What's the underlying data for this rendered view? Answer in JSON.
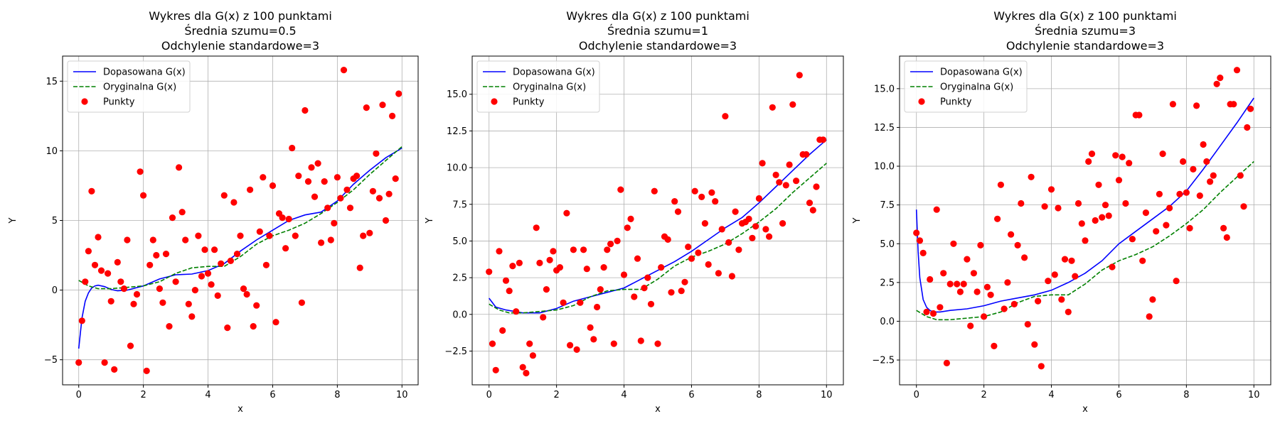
{
  "colors": {
    "fitted": "#0000ff",
    "original": "#008000",
    "points": "#ff0000",
    "grid": "#b0b0b0",
    "axes": "#000000"
  },
  "chart_data": [
    {
      "type": "scatter",
      "title": [
        "Wykres dla G(x) z 100 punktami",
        "Średnia szumu=0.5",
        "Odchylenie standardowe=3"
      ],
      "xlabel": "x",
      "ylabel": "Y",
      "xlim": [
        -0.5,
        10.5
      ],
      "ylim": [
        -6.8,
        16.8
      ],
      "xticks": [
        0,
        2,
        4,
        6,
        8,
        10
      ],
      "xtick_labels": [
        "0",
        "2",
        "4",
        "6",
        "8",
        "10"
      ],
      "yticks": [
        -5,
        0,
        5,
        10,
        15
      ],
      "ytick_labels": [
        "−5",
        "0",
        "5",
        "10",
        "15"
      ],
      "grid": true,
      "legend_position": "top-left",
      "legend": [
        "Dopasowana G(x)",
        "Oryginalna G(x)",
        "Punkty"
      ],
      "series": [
        {
          "name": "Dopasowana G(x)",
          "style": "solid",
          "color": "#0000ff",
          "x": [
            0,
            0.1,
            0.2,
            0.3,
            0.4,
            0.5,
            0.6,
            0.8,
            1.0,
            1.2,
            1.5,
            2.0,
            2.5,
            3.0,
            3.5,
            4.0,
            4.5,
            5.0,
            5.5,
            6.0,
            6.5,
            7.0,
            7.5,
            8.0,
            8.5,
            9.0,
            9.5,
            10.0
          ],
          "y": [
            -4.2,
            -2.0,
            -0.8,
            -0.2,
            0.15,
            0.3,
            0.35,
            0.25,
            0.05,
            -0.05,
            0.0,
            0.3,
            0.8,
            1.1,
            1.15,
            1.4,
            1.9,
            2.8,
            3.6,
            4.3,
            5.0,
            5.4,
            5.6,
            6.4,
            7.6,
            8.6,
            9.5,
            10.2
          ]
        },
        {
          "name": "Oryginalna G(x)",
          "style": "dashed",
          "color": "#008000",
          "x": [
            0,
            0.3,
            0.6,
            1.0,
            1.5,
            2.0,
            2.5,
            3.0,
            3.5,
            4.0,
            4.5,
            5.0,
            5.5,
            6.0,
            6.5,
            7.0,
            7.5,
            8.0,
            8.5,
            9.0,
            9.5,
            10.0
          ],
          "y": [
            0.7,
            0.3,
            0.1,
            0.1,
            0.2,
            0.3,
            0.6,
            1.2,
            1.6,
            1.7,
            1.7,
            2.4,
            3.3,
            3.9,
            4.3,
            4.8,
            5.5,
            6.3,
            7.2,
            8.3,
            9.3,
            10.3
          ]
        },
        {
          "name": "Punkty",
          "style": "markers",
          "color": "#ff0000",
          "x": [
            0.0,
            0.1,
            0.2,
            0.3,
            0.4,
            0.5,
            0.6,
            0.7,
            0.8,
            0.9,
            1.0,
            1.1,
            1.2,
            1.3,
            1.4,
            1.5,
            1.6,
            1.7,
            1.8,
            1.9,
            2.0,
            2.1,
            2.2,
            2.3,
            2.4,
            2.5,
            2.6,
            2.7,
            2.8,
            2.9,
            3.0,
            3.1,
            3.2,
            3.3,
            3.4,
            3.5,
            3.6,
            3.7,
            3.8,
            3.9,
            4.0,
            4.1,
            4.2,
            4.3,
            4.4,
            4.5,
            4.6,
            4.7,
            4.8,
            4.9,
            5.0,
            5.1,
            5.2,
            5.3,
            5.4,
            5.5,
            5.6,
            5.7,
            5.8,
            5.9,
            6.0,
            6.1,
            6.2,
            6.3,
            6.4,
            6.5,
            6.6,
            6.7,
            6.8,
            6.9,
            7.0,
            7.1,
            7.2,
            7.3,
            7.4,
            7.5,
            7.6,
            7.7,
            7.8,
            7.9,
            8.0,
            8.1,
            8.2,
            8.3,
            8.4,
            8.5,
            8.6,
            8.7,
            8.8,
            8.9,
            9.0,
            9.1,
            9.2,
            9.3,
            9.4,
            9.5,
            9.6,
            9.7,
            9.8,
            9.9
          ],
          "y": [
            -5.2,
            -2.2,
            0.6,
            2.8,
            7.1,
            1.8,
            3.8,
            1.4,
            -5.2,
            1.2,
            -0.8,
            -5.7,
            2.0,
            0.6,
            0.1,
            3.6,
            -4.0,
            -1.0,
            -0.3,
            8.5,
            6.8,
            -5.8,
            1.8,
            3.6,
            2.5,
            0.1,
            -0.9,
            2.6,
            -2.6,
            5.2,
            0.6,
            8.8,
            5.6,
            3.6,
            -1.0,
            -1.9,
            0.0,
            3.9,
            1.0,
            2.9,
            1.2,
            0.4,
            2.9,
            -0.4,
            1.9,
            6.8,
            -2.7,
            2.1,
            6.3,
            2.6,
            3.9,
            0.1,
            -0.3,
            7.2,
            -2.6,
            -1.1,
            4.2,
            8.1,
            1.8,
            3.9,
            7.5,
            -2.3,
            5.5,
            5.2,
            3.0,
            5.1,
            10.2,
            3.9,
            8.2,
            -0.9,
            12.9,
            7.8,
            8.8,
            6.7,
            9.1,
            3.4,
            7.8,
            5.9,
            3.6,
            4.8,
            8.1,
            6.6,
            15.8,
            7.2,
            5.9,
            8.0,
            8.2,
            1.6,
            3.9,
            13.1,
            4.1,
            7.1,
            9.8,
            6.6,
            13.3,
            5.0,
            6.9,
            12.5,
            8.0,
            14.1
          ]
        }
      ]
    },
    {
      "type": "scatter",
      "title": [
        "Wykres dla G(x) z 100 punktami",
        "Średnia szumu=1",
        "Odchylenie standardowe=3"
      ],
      "xlabel": "x",
      "ylabel": "Y",
      "xlim": [
        -0.5,
        10.5
      ],
      "ylim": [
        -4.8,
        17.6
      ],
      "xticks": [
        0,
        2,
        4,
        6,
        8,
        10
      ],
      "xtick_labels": [
        "0",
        "2",
        "4",
        "6",
        "8",
        "10"
      ],
      "yticks": [
        -2.5,
        0.0,
        2.5,
        5.0,
        7.5,
        10.0,
        12.5,
        15.0
      ],
      "ytick_labels": [
        "−2.5",
        "0.0",
        "2.5",
        "5.0",
        "7.5",
        "10.0",
        "12.5",
        "15.0"
      ],
      "grid": true,
      "legend_position": "top-left",
      "legend": [
        "Dopasowana G(x)",
        "Oryginalna G(x)",
        "Punkty"
      ],
      "series": [
        {
          "name": "Dopasowana G(x)",
          "style": "solid",
          "color": "#0000ff",
          "x": [
            0,
            0.2,
            0.5,
            1.0,
            1.5,
            2.0,
            2.5,
            3.0,
            3.5,
            4.0,
            4.5,
            5.0,
            5.5,
            6.0,
            6.5,
            7.0,
            7.5,
            8.0,
            8.5,
            9.0,
            9.5,
            10.0
          ],
          "y": [
            1.1,
            0.5,
            0.3,
            0.1,
            0.1,
            0.4,
            0.9,
            1.2,
            1.5,
            1.8,
            2.4,
            3.0,
            3.6,
            4.3,
            5.1,
            5.9,
            6.6,
            7.6,
            8.7,
            9.8,
            10.9,
            11.9
          ]
        },
        {
          "name": "Oryginalna G(x)",
          "style": "dashed",
          "color": "#008000",
          "x": [
            0,
            0.3,
            0.6,
            1.0,
            1.5,
            2.0,
            2.5,
            3.0,
            3.5,
            4.0,
            4.5,
            5.0,
            5.5,
            6.0,
            6.5,
            7.0,
            7.5,
            8.0,
            8.5,
            9.0,
            9.5,
            10.0
          ],
          "y": [
            0.7,
            0.3,
            0.1,
            0.1,
            0.2,
            0.3,
            0.6,
            1.2,
            1.6,
            1.7,
            1.7,
            2.4,
            3.3,
            3.9,
            4.3,
            4.8,
            5.5,
            6.3,
            7.2,
            8.3,
            9.3,
            10.3
          ]
        },
        {
          "name": "Punkty",
          "style": "markers",
          "color": "#ff0000",
          "x": [
            0.0,
            0.1,
            0.2,
            0.3,
            0.4,
            0.5,
            0.6,
            0.7,
            0.8,
            0.9,
            1.0,
            1.1,
            1.2,
            1.3,
            1.4,
            1.5,
            1.6,
            1.7,
            1.8,
            1.9,
            2.0,
            2.1,
            2.2,
            2.3,
            2.4,
            2.5,
            2.6,
            2.7,
            2.8,
            2.9,
            3.0,
            3.1,
            3.2,
            3.3,
            3.4,
            3.5,
            3.6,
            3.7,
            3.8,
            3.9,
            4.0,
            4.1,
            4.2,
            4.3,
            4.4,
            4.5,
            4.6,
            4.7,
            4.8,
            4.9,
            5.0,
            5.1,
            5.2,
            5.3,
            5.4,
            5.5,
            5.6,
            5.7,
            5.8,
            5.9,
            6.0,
            6.1,
            6.2,
            6.3,
            6.4,
            6.5,
            6.6,
            6.7,
            6.8,
            6.9,
            7.0,
            7.1,
            7.2,
            7.3,
            7.4,
            7.5,
            7.6,
            7.7,
            7.8,
            7.9,
            8.0,
            8.1,
            8.2,
            8.3,
            8.4,
            8.5,
            8.6,
            8.7,
            8.8,
            8.9,
            9.0,
            9.1,
            9.2,
            9.3,
            9.4,
            9.5,
            9.6,
            9.7,
            9.8,
            9.9
          ],
          "y": [
            2.9,
            -2.0,
            -3.8,
            4.3,
            -1.1,
            2.3,
            1.6,
            3.3,
            0.2,
            3.5,
            -3.6,
            -4.0,
            -2.0,
            -2.8,
            5.9,
            3.5,
            -0.2,
            1.7,
            3.7,
            4.3,
            3.0,
            3.2,
            0.8,
            6.9,
            -2.1,
            4.4,
            -2.4,
            0.8,
            4.4,
            3.1,
            -0.9,
            -1.7,
            0.5,
            1.7,
            3.2,
            4.4,
            4.8,
            -2.0,
            5.0,
            8.5,
            2.7,
            5.9,
            6.5,
            1.2,
            3.8,
            -1.8,
            1.8,
            2.5,
            0.7,
            8.4,
            -2.0,
            3.2,
            5.3,
            5.1,
            1.5,
            7.7,
            7.0,
            1.6,
            2.2,
            4.6,
            3.8,
            8.4,
            4.2,
            8.0,
            6.2,
            3.4,
            8.3,
            7.7,
            2.8,
            5.8,
            13.5,
            4.9,
            2.6,
            7.0,
            4.4,
            6.2,
            6.3,
            6.5,
            5.2,
            6.0,
            7.9,
            10.3,
            5.8,
            5.3,
            14.1,
            9.5,
            9.0,
            6.2,
            8.8,
            10.2,
            14.3,
            9.1,
            16.3,
            10.9,
            10.9,
            7.6,
            7.1,
            8.7,
            11.9,
            11.9
          ]
        }
      ]
    },
    {
      "type": "scatter",
      "title": [
        "Wykres dla G(x) z 100 punktami",
        "Średnia szumu=3",
        "Odchylenie standardowe=3"
      ],
      "xlabel": "x",
      "ylabel": "Y",
      "xlim": [
        -0.5,
        10.5
      ],
      "ylim": [
        -4.1,
        17.1
      ],
      "xticks": [
        0,
        2,
        4,
        6,
        8,
        10
      ],
      "xtick_labels": [
        "0",
        "2",
        "4",
        "6",
        "8",
        "10"
      ],
      "yticks": [
        -2.5,
        0.0,
        2.5,
        5.0,
        7.5,
        10.0,
        12.5,
        15.0
      ],
      "ytick_labels": [
        "−2.5",
        "0.0",
        "2.5",
        "5.0",
        "7.5",
        "10.0",
        "12.5",
        "15.0"
      ],
      "grid": true,
      "legend_position": "top-left",
      "legend": [
        "Dopasowana G(x)",
        "Oryginalna G(x)",
        "Punkty"
      ],
      "series": [
        {
          "name": "Dopasowana G(x)",
          "style": "solid",
          "color": "#0000ff",
          "x": [
            0,
            0.05,
            0.1,
            0.2,
            0.3,
            0.4,
            0.5,
            0.7,
            1.0,
            1.5,
            2.0,
            2.5,
            3.0,
            3.5,
            4.0,
            4.5,
            5.0,
            5.5,
            6.0,
            6.5,
            7.0,
            7.5,
            8.0,
            8.5,
            9.0,
            9.5,
            10.0
          ],
          "y": [
            7.2,
            4.5,
            2.8,
            1.4,
            0.9,
            0.7,
            0.6,
            0.6,
            0.7,
            0.8,
            1.0,
            1.3,
            1.5,
            1.7,
            2.0,
            2.5,
            3.1,
            3.9,
            5.0,
            5.8,
            6.6,
            7.4,
            8.4,
            9.8,
            11.3,
            12.8,
            14.4
          ]
        },
        {
          "name": "Oryginalna G(x)",
          "style": "dashed",
          "color": "#008000",
          "x": [
            0,
            0.3,
            0.6,
            1.0,
            1.5,
            2.0,
            2.5,
            3.0,
            3.5,
            4.0,
            4.5,
            5.0,
            5.5,
            6.0,
            6.5,
            7.0,
            7.5,
            8.0,
            8.5,
            9.0,
            9.5,
            10.0
          ],
          "y": [
            0.7,
            0.3,
            0.1,
            0.1,
            0.2,
            0.3,
            0.6,
            1.2,
            1.6,
            1.7,
            1.7,
            2.4,
            3.3,
            3.9,
            4.3,
            4.8,
            5.5,
            6.3,
            7.2,
            8.3,
            9.3,
            10.3
          ]
        },
        {
          "name": "Punkty",
          "style": "markers",
          "color": "#ff0000",
          "x": [
            0.0,
            0.1,
            0.2,
            0.3,
            0.4,
            0.5,
            0.6,
            0.7,
            0.8,
            0.9,
            1.0,
            1.1,
            1.2,
            1.3,
            1.4,
            1.5,
            1.6,
            1.7,
            1.8,
            1.9,
            2.0,
            2.1,
            2.2,
            2.3,
            2.4,
            2.5,
            2.6,
            2.7,
            2.8,
            2.9,
            3.0,
            3.1,
            3.2,
            3.3,
            3.4,
            3.5,
            3.6,
            3.7,
            3.8,
            3.9,
            4.0,
            4.1,
            4.2,
            4.3,
            4.4,
            4.5,
            4.6,
            4.7,
            4.8,
            4.9,
            5.0,
            5.1,
            5.2,
            5.3,
            5.4,
            5.5,
            5.6,
            5.7,
            5.8,
            5.9,
            6.0,
            6.1,
            6.2,
            6.3,
            6.4,
            6.5,
            6.6,
            6.7,
            6.8,
            6.9,
            7.0,
            7.1,
            7.2,
            7.3,
            7.4,
            7.5,
            7.6,
            7.7,
            7.8,
            7.9,
            8.0,
            8.1,
            8.2,
            8.3,
            8.4,
            8.5,
            8.6,
            8.7,
            8.8,
            8.9,
            9.0,
            9.1,
            9.2,
            9.3,
            9.4,
            9.5,
            9.6,
            9.7,
            9.8,
            9.9
          ],
          "y": [
            5.7,
            5.2,
            4.4,
            0.6,
            2.7,
            0.5,
            7.2,
            0.9,
            3.1,
            -2.7,
            2.4,
            5.0,
            2.4,
            1.9,
            2.4,
            4.0,
            -0.3,
            3.1,
            1.9,
            4.9,
            0.3,
            2.2,
            1.7,
            -1.6,
            6.6,
            8.8,
            0.8,
            2.5,
            5.6,
            1.1,
            4.9,
            7.6,
            4.1,
            -0.2,
            9.3,
            -1.5,
            1.3,
            -2.9,
            7.4,
            2.6,
            8.5,
            3.0,
            7.3,
            1.4,
            4.0,
            0.6,
            3.9,
            2.9,
            7.6,
            6.3,
            5.2,
            10.3,
            10.8,
            6.5,
            8.8,
            6.7,
            7.5,
            6.8,
            3.5,
            10.7,
            9.1,
            10.6,
            7.6,
            10.2,
            5.3,
            13.3,
            13.3,
            3.9,
            7.0,
            0.3,
            1.4,
            5.8,
            8.2,
            10.8,
            6.2,
            7.3,
            14.0,
            2.6,
            8.2,
            10.3,
            8.3,
            6.0,
            9.8,
            13.9,
            8.1,
            11.4,
            10.3,
            9.0,
            9.4,
            15.3,
            15.7,
            6.0,
            5.4,
            14.0,
            14.0,
            16.2,
            9.4,
            7.4,
            12.5,
            13.7
          ]
        }
      ]
    }
  ]
}
